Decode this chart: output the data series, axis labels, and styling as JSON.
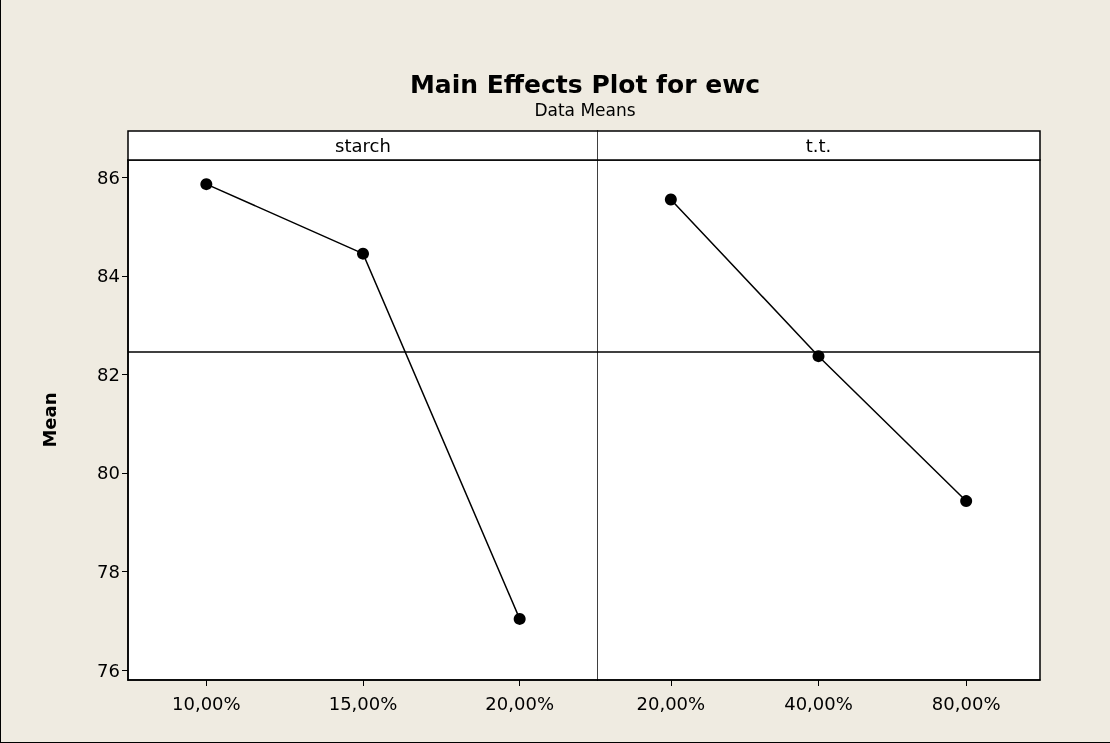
{
  "chart_data": [
    {
      "type": "line",
      "title": "Main Effects Plot for ewc",
      "subtitle": "Data Means",
      "xlabel": "starch",
      "ylabel": "Mean",
      "categories": [
        "10,00%",
        "15,00%",
        "20,00%"
      ],
      "values": [
        85.86,
        84.45,
        77.04
      ],
      "color": "#000000",
      "marker": "circle",
      "ylim": [
        75.8,
        86.35
      ],
      "yticks": [
        76,
        78,
        80,
        82,
        84,
        86
      ],
      "ref_lines": [
        {
          "axis": "y",
          "value": 82.45,
          "color": "#000000"
        }
      ]
    },
    {
      "type": "line",
      "xlabel": "t.t.",
      "categories": [
        "20,00%",
        "40,00%",
        "80,00%"
      ],
      "values": [
        85.55,
        82.37,
        79.43
      ],
      "color": "#000000",
      "marker": "circle",
      "ylim": [
        75.8,
        86.35
      ],
      "yticks": [
        76,
        78,
        80,
        82,
        84,
        86
      ],
      "tick_labels": "x",
      "ref_lines": [
        {
          "axis": "y",
          "value": 82.45,
          "color": "#000000"
        }
      ]
    }
  ]
}
